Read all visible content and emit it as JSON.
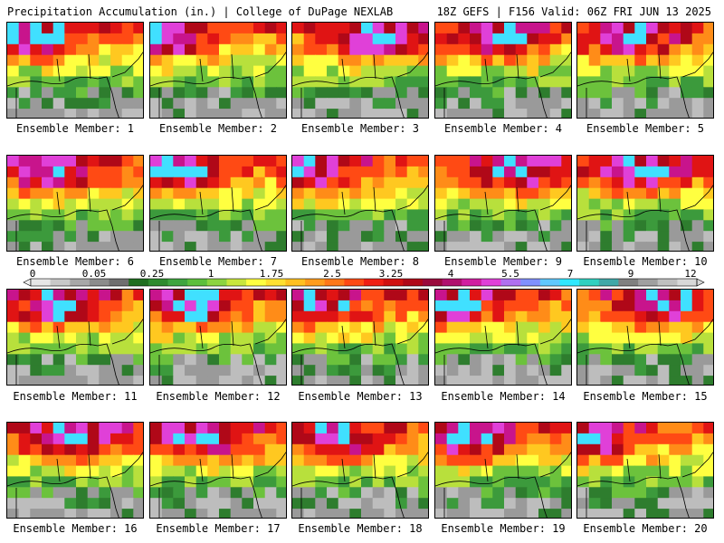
{
  "header": {
    "left": "Precipitation Accumulation (in.) | College of DuPage NEXLAB",
    "right": "18Z GEFS | F156 Valid: 06Z FRI JUN 13 2025"
  },
  "caption_prefix": "Ensemble Member:",
  "members": [
    {
      "id": "1",
      "label": "Ensemble Member: 1"
    },
    {
      "id": "2",
      "label": "Ensemble Member: 2"
    },
    {
      "id": "3",
      "label": "Ensemble Member: 3"
    },
    {
      "id": "4",
      "label": "Ensemble Member: 4"
    },
    {
      "id": "5",
      "label": "Ensemble Member: 5"
    },
    {
      "id": "6",
      "label": "Ensemble Member: 6"
    },
    {
      "id": "7",
      "label": "Ensemble Member: 7"
    },
    {
      "id": "8",
      "label": "Ensemble Member: 8"
    },
    {
      "id": "9",
      "label": "Ensemble Member: 9"
    },
    {
      "id": "10",
      "label": "Ensemble Member: 10"
    },
    {
      "id": "11",
      "label": "Ensemble Member: 11"
    },
    {
      "id": "12",
      "label": "Ensemble Member: 12"
    },
    {
      "id": "13",
      "label": "Ensemble Member: 13"
    },
    {
      "id": "14",
      "label": "Ensemble Member: 14"
    },
    {
      "id": "15",
      "label": "Ensemble Member: 15"
    },
    {
      "id": "16",
      "label": "Ensemble Member: 16"
    },
    {
      "id": "17",
      "label": "Ensemble Member: 17"
    },
    {
      "id": "18",
      "label": "Ensemble Member: 18"
    },
    {
      "id": "19",
      "label": "Ensemble Member: 19"
    },
    {
      "id": "20",
      "label": "Ensemble Member: 20"
    }
  ],
  "colorbar": {
    "tick_labels": [
      "0",
      "0.05",
      "0.25",
      "1",
      "1.75",
      "2.5",
      "3.25",
      "4",
      "5.5",
      "7",
      "9",
      "12"
    ],
    "colors": [
      "#e6e6e6",
      "#c8c8c8",
      "#a8a8a8",
      "#8c8c8c",
      "#6f6f6f",
      "#1f6e1f",
      "#2e8b2e",
      "#3fa53f",
      "#5cbf3c",
      "#8cd440",
      "#c8e63c",
      "#ffff40",
      "#ffe030",
      "#ffc020",
      "#ff9c1c",
      "#ff7818",
      "#ff4a14",
      "#f01e14",
      "#d01010",
      "#b00818",
      "#9a0a3c",
      "#b0106e",
      "#d01ea0",
      "#e040d8",
      "#b070f0",
      "#8090ff",
      "#60c8ff",
      "#30e8ff",
      "#30d0c0",
      "#40a8a8",
      "#808080",
      "#a0a0a0",
      "#c0c0c0",
      "#d8d8d8"
    ]
  }
}
